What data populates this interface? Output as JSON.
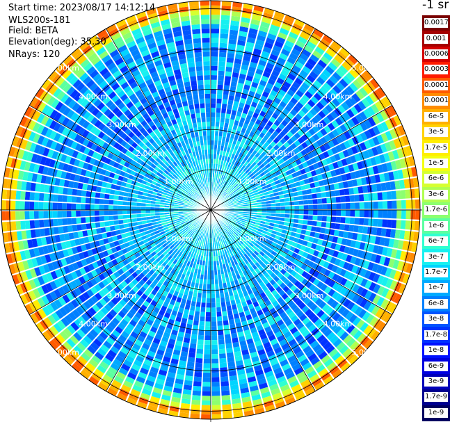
{
  "header": {
    "start_time": "Start time: 2023/08/17 14:12:14",
    "device": "WLS200s-181",
    "field": "Field: BETA",
    "elevation": "Elevation(deg): 35.30",
    "nrays": "NRays: 120"
  },
  "colorbar": {
    "unit": "-1 sr",
    "labels": [
      "0.0017",
      "0.001",
      "0.0006",
      "0.0003",
      "0.00017",
      "0.0001",
      "6e-5",
      "3e-5",
      "1.7e-5",
      "1e-5",
      "6e-6",
      "3e-6",
      "1.7e-6",
      "1e-6",
      "6e-7",
      "3e-7",
      "1.7e-7",
      "1e-7",
      "6e-8",
      "3e-8",
      "1.7e-8",
      "1e-8",
      "6e-9",
      "3e-9",
      "1.7e-9",
      "1e-9"
    ],
    "colors": [
      "#7a0000",
      "#a60000",
      "#d40000",
      "#ff1a00",
      "#ff5a00",
      "#ff8c00",
      "#ffb000",
      "#ffd200",
      "#ffee00",
      "#f4ff10",
      "#d6ff30",
      "#b0ff50",
      "#8cff70",
      "#5cffa0",
      "#30ffd0",
      "#18f0f0",
      "#00d4ff",
      "#00aaff",
      "#0080ff",
      "#0055ff",
      "#0033ff",
      "#0010ff",
      "#0000e0",
      "#0000b8",
      "#000090",
      "#000060"
    ]
  },
  "chart_data": {
    "type": "heatmap",
    "projection": "polar-ppi",
    "n_rays": 120,
    "max_range_km": 5.2,
    "range_ring_labels": [
      "1.00km",
      "2.00km",
      "3.00km",
      "4.00km",
      "5.00km"
    ],
    "color_scale": "log",
    "value_range": [
      1e-09,
      0.0017
    ],
    "typical_values": {
      "near_range": "1e-7",
      "mid_range": "3e-8",
      "far_edge": "6e-5"
    }
  }
}
